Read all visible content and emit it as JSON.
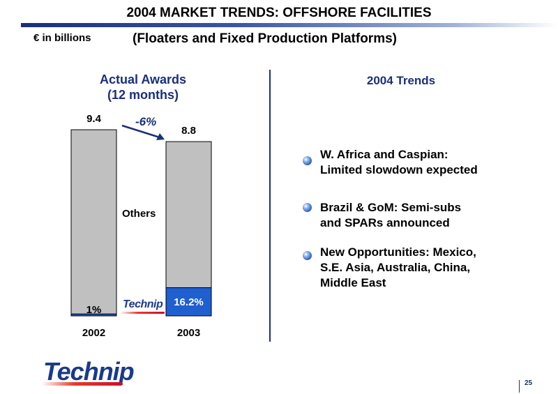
{
  "header": {
    "title": "2004 MARKET TRENDS: OFFSHORE FACILITIES",
    "subtitle": "(Floaters and Fixed Production Platforms)",
    "unit": "€ in billions"
  },
  "chart_heading": {
    "line1": "Actual Awards",
    "line2": "(12 months)"
  },
  "chart_data": {
    "type": "bar",
    "categories": [
      "2002",
      "2003"
    ],
    "totals": [
      9.4,
      8.8
    ],
    "total_labels": [
      "9.4",
      "8.8"
    ],
    "technip_share_pct": [
      1,
      16.2
    ],
    "share_labels": [
      "1%",
      "16.2%"
    ],
    "segment_label": "Others",
    "change_label": "-6%",
    "ylim": [
      0,
      10
    ],
    "colors": {
      "others": "#c0c0c0",
      "technip": "#1f5fcf"
    }
  },
  "technip_small_logo": "Technip",
  "trends": {
    "heading": "2004 Trends",
    "items": [
      {
        "line1": "W. Africa and Caspian:",
        "line2": "Limited slowdown expected",
        "line3": ""
      },
      {
        "line1": "Brazil & GoM: Semi-subs",
        "line2": "and SPARs announced",
        "line3": ""
      },
      {
        "line1": "New Opportunities: Mexico,",
        "line2": "S.E. Asia, Australia, China,",
        "line3": "Middle East"
      }
    ]
  },
  "footer": {
    "logo": "Technip",
    "page_number": "25"
  }
}
